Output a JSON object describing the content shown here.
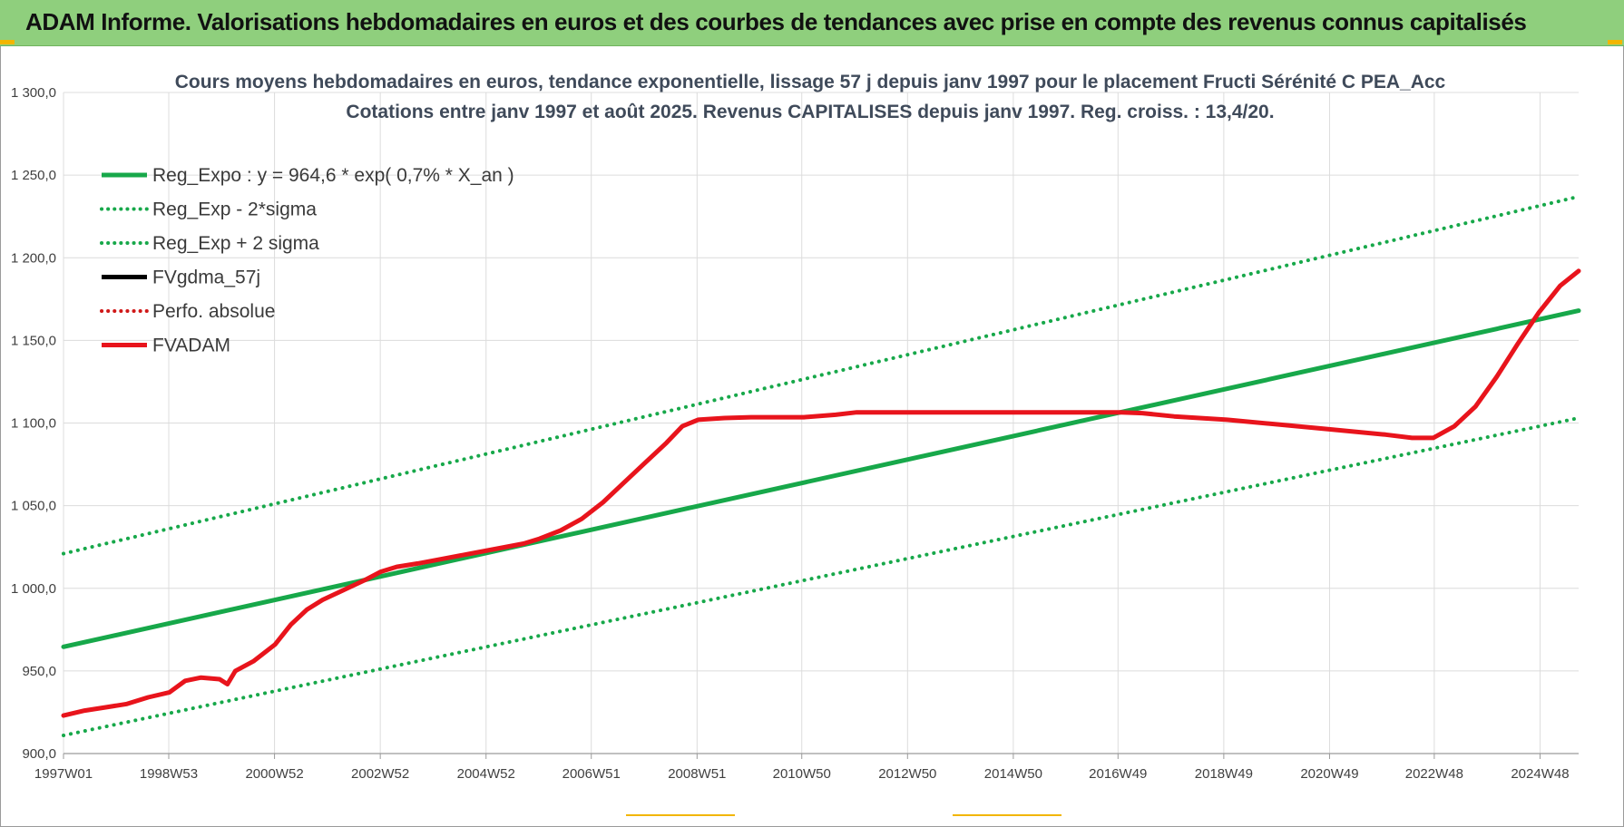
{
  "banner": {
    "title": "ADAM Informe. Valorisations hebdomadaires en euros et des courbes de tendances avec prise en compte des revenus connus capitalisés"
  },
  "colors": {
    "banner_bg": "#8fcf7d",
    "reg_green": "#17a84a",
    "fvadam_red": "#e8141c",
    "fvgdma_black": "#000000",
    "perfo_red": "#d01818",
    "grid": "#dcdcdc",
    "accent_yellow": "#f2b600"
  },
  "chart_data": {
    "type": "line",
    "title_lines": [
      "Cours moyens hebdomadaires en euros, tendance exponentielle, lissage 57 j depuis janv 1997 pour le placement Fructi Sérénité C PEA_Acc",
      "Cotations entre janv 1997 et août 2025.  Revenus CAPITALISES  depuis janv 1997. Reg.  croiss. : 13,4/20."
    ],
    "x_range": [
      1997.0,
      2025.65
    ],
    "x_ticks": [
      {
        "x": 1997.0,
        "label": "1997W01"
      },
      {
        "x": 1998.99,
        "label": "1998W53"
      },
      {
        "x": 2000.99,
        "label": "2000W52"
      },
      {
        "x": 2002.99,
        "label": "2002W52"
      },
      {
        "x": 2004.99,
        "label": "2004W52"
      },
      {
        "x": 2006.98,
        "label": "2006W51"
      },
      {
        "x": 2008.98,
        "label": "2008W51"
      },
      {
        "x": 2010.96,
        "label": "2010W50"
      },
      {
        "x": 2012.96,
        "label": "2012W50"
      },
      {
        "x": 2014.96,
        "label": "2014W50"
      },
      {
        "x": 2016.94,
        "label": "2016W49"
      },
      {
        "x": 2018.94,
        "label": "2018W49"
      },
      {
        "x": 2020.94,
        "label": "2020W49"
      },
      {
        "x": 2022.92,
        "label": "2022W48"
      },
      {
        "x": 2024.92,
        "label": "2024W48"
      }
    ],
    "y_range": [
      900,
      1300
    ],
    "y_ticks": [
      {
        "y": 900,
        "label": "900,0"
      },
      {
        "y": 950,
        "label": "950,0"
      },
      {
        "y": 1000,
        "label": "1 000,0"
      },
      {
        "y": 1050,
        "label": "1 050,0"
      },
      {
        "y": 1100,
        "label": "1 100,0"
      },
      {
        "y": 1150,
        "label": "1 150,0"
      },
      {
        "y": 1200,
        "label": "1 200,0"
      },
      {
        "y": 1250,
        "label": "1 250,0"
      },
      {
        "y": 1300,
        "label": "1 300,0"
      }
    ],
    "grid": true,
    "legend_position": "top-left",
    "series": [
      {
        "name": "Reg_Expo : y = 964,6 * exp( 0,7% *  X_an )",
        "style": "solid",
        "color": "#17a84a",
        "width": 5,
        "points": [
          [
            1997.0,
            964.6
          ],
          [
            2025.65,
            1168
          ]
        ]
      },
      {
        "name": "Reg_Exp - 2*sigma",
        "style": "dotted",
        "color": "#17a84a",
        "width": 4,
        "points": [
          [
            1997.0,
            911
          ],
          [
            2025.65,
            1103
          ]
        ]
      },
      {
        "name": "Reg_Exp + 2 sigma",
        "style": "dotted",
        "color": "#17a84a",
        "width": 4,
        "points": [
          [
            1997.0,
            1021
          ],
          [
            2025.65,
            1237
          ]
        ]
      },
      {
        "name": "FVgdma_57j",
        "style": "solid",
        "color": "#000000",
        "width": 3,
        "points": [
          [
            1997.0,
            923
          ],
          [
            1997.4,
            926
          ],
          [
            1997.8,
            928
          ],
          [
            1998.2,
            930
          ],
          [
            1998.6,
            934
          ],
          [
            1999.0,
            937
          ],
          [
            1999.3,
            944
          ],
          [
            1999.6,
            946
          ],
          [
            1999.95,
            945
          ],
          [
            2000.1,
            942
          ],
          [
            2000.25,
            950
          ],
          [
            2000.6,
            956
          ],
          [
            2001.0,
            966
          ],
          [
            2001.3,
            978
          ],
          [
            2001.6,
            987
          ],
          [
            2001.9,
            993
          ],
          [
            2002.3,
            999
          ],
          [
            2002.7,
            1005
          ],
          [
            2003.0,
            1010
          ],
          [
            2003.3,
            1013
          ],
          [
            2003.7,
            1015
          ],
          [
            2004.2,
            1018
          ],
          [
            2004.7,
            1021
          ],
          [
            2005.2,
            1024
          ],
          [
            2005.7,
            1027
          ],
          [
            2006.0,
            1030
          ],
          [
            2006.4,
            1035
          ],
          [
            2006.8,
            1042
          ],
          [
            2007.2,
            1052
          ],
          [
            2007.6,
            1064
          ],
          [
            2008.0,
            1076
          ],
          [
            2008.4,
            1088
          ],
          [
            2008.7,
            1098
          ],
          [
            2009.0,
            1102
          ],
          [
            2009.5,
            1103
          ],
          [
            2010.0,
            1103.5
          ],
          [
            2011.0,
            1103.5
          ],
          [
            2011.6,
            1105
          ],
          [
            2012.0,
            1106.5
          ],
          [
            2014.0,
            1106.5
          ],
          [
            2016.0,
            1106.5
          ],
          [
            2017.0,
            1106.5
          ],
          [
            2017.4,
            1106
          ],
          [
            2018.0,
            1104
          ],
          [
            2019.0,
            1102
          ],
          [
            2020.0,
            1099
          ],
          [
            2021.0,
            1096
          ],
          [
            2022.0,
            1093
          ],
          [
            2022.5,
            1091
          ],
          [
            2022.9,
            1091
          ],
          [
            2023.3,
            1098
          ],
          [
            2023.7,
            1110
          ],
          [
            2024.1,
            1128
          ],
          [
            2024.5,
            1148
          ],
          [
            2024.9,
            1167
          ],
          [
            2025.3,
            1183
          ],
          [
            2025.65,
            1192
          ]
        ]
      },
      {
        "name": "Perfo. absolue",
        "style": "dotted",
        "color": "#d01818",
        "width": 3,
        "points": []
      },
      {
        "name": "FVADAM",
        "style": "solid",
        "color": "#e8141c",
        "width": 5,
        "points": [
          [
            1997.0,
            923
          ],
          [
            1997.4,
            926
          ],
          [
            1997.8,
            928
          ],
          [
            1998.2,
            930
          ],
          [
            1998.6,
            934
          ],
          [
            1999.0,
            937
          ],
          [
            1999.3,
            944
          ],
          [
            1999.6,
            946
          ],
          [
            1999.95,
            945
          ],
          [
            2000.1,
            942
          ],
          [
            2000.25,
            950
          ],
          [
            2000.6,
            956
          ],
          [
            2001.0,
            966
          ],
          [
            2001.3,
            978
          ],
          [
            2001.6,
            987
          ],
          [
            2001.9,
            993
          ],
          [
            2002.3,
            999
          ],
          [
            2002.7,
            1005
          ],
          [
            2003.0,
            1010
          ],
          [
            2003.3,
            1013
          ],
          [
            2003.7,
            1015
          ],
          [
            2004.2,
            1018
          ],
          [
            2004.7,
            1021
          ],
          [
            2005.2,
            1024
          ],
          [
            2005.7,
            1027
          ],
          [
            2006.0,
            1030
          ],
          [
            2006.4,
            1035
          ],
          [
            2006.8,
            1042
          ],
          [
            2007.2,
            1052
          ],
          [
            2007.6,
            1064
          ],
          [
            2008.0,
            1076
          ],
          [
            2008.4,
            1088
          ],
          [
            2008.7,
            1098
          ],
          [
            2009.0,
            1102
          ],
          [
            2009.5,
            1103
          ],
          [
            2010.0,
            1103.5
          ],
          [
            2011.0,
            1103.5
          ],
          [
            2011.6,
            1105
          ],
          [
            2012.0,
            1106.5
          ],
          [
            2014.0,
            1106.5
          ],
          [
            2016.0,
            1106.5
          ],
          [
            2017.0,
            1106.5
          ],
          [
            2017.4,
            1106
          ],
          [
            2018.0,
            1104
          ],
          [
            2019.0,
            1102
          ],
          [
            2020.0,
            1099
          ],
          [
            2021.0,
            1096
          ],
          [
            2022.0,
            1093
          ],
          [
            2022.5,
            1091
          ],
          [
            2022.9,
            1091
          ],
          [
            2023.3,
            1098
          ],
          [
            2023.7,
            1110
          ],
          [
            2024.1,
            1128
          ],
          [
            2024.5,
            1148
          ],
          [
            2024.9,
            1167
          ],
          [
            2025.3,
            1183
          ],
          [
            2025.65,
            1192
          ]
        ]
      }
    ]
  }
}
